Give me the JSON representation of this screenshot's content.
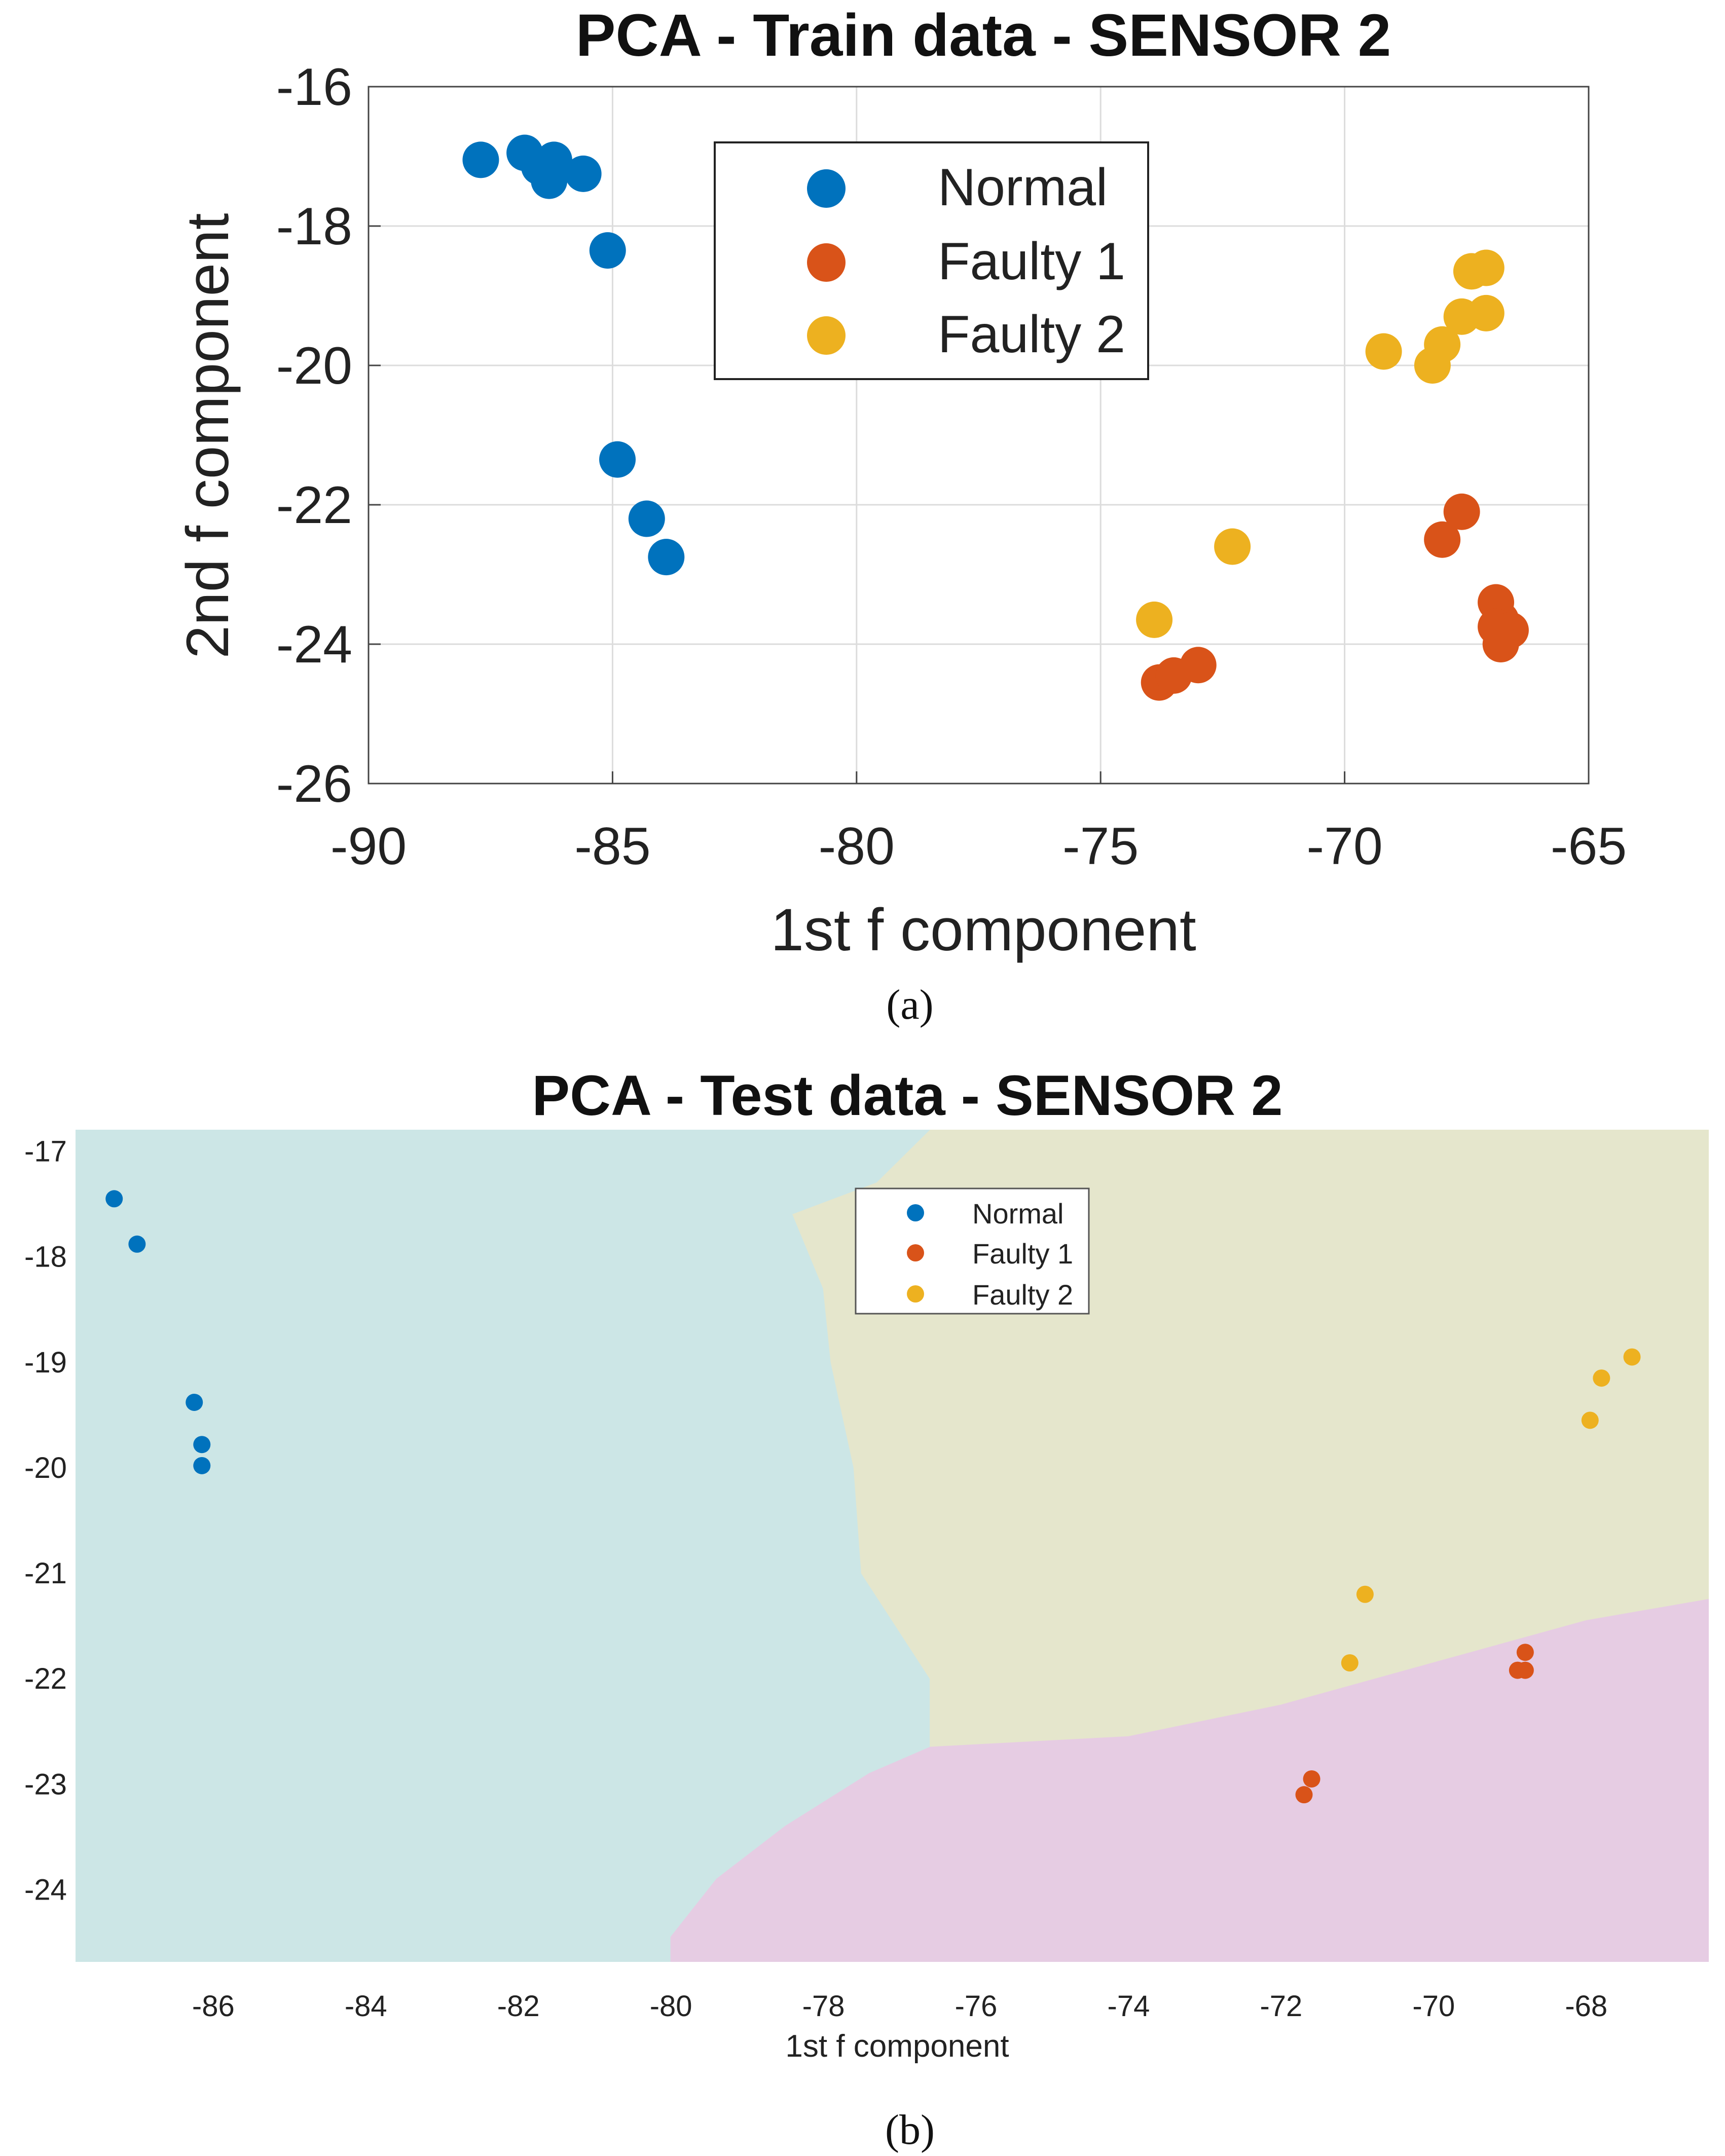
{
  "chart_data": [
    {
      "type": "scatter",
      "title": "PCA - Train data - SENSOR 2",
      "xlabel": "1st f component",
      "ylabel": "2nd f component",
      "xlim": [
        -90,
        -65
      ],
      "ylim": [
        -26,
        -16
      ],
      "xticks": [
        "-90",
        "-85",
        "-80",
        "-75",
        "-70",
        "-65"
      ],
      "xtick_values": [
        -90,
        -85,
        -80,
        -75,
        -70,
        -65
      ],
      "yticks": [
        "-16",
        "-18",
        "-20",
        "-22",
        "-24",
        "-26"
      ],
      "ytick_values": [
        -16,
        -18,
        -20,
        -22,
        -24,
        -26
      ],
      "grid": true,
      "legend_position": "top-center",
      "caption": "(a)",
      "series": [
        {
          "name": "Normal",
          "color": "#0072BD",
          "points": [
            [
              -87.7,
              -17.05
            ],
            [
              -86.8,
              -16.95
            ],
            [
              -86.5,
              -17.15
            ],
            [
              -86.2,
              -17.05
            ],
            [
              -86.3,
              -17.35
            ],
            [
              -85.6,
              -17.25
            ],
            [
              -85.1,
              -18.35
            ],
            [
              -84.9,
              -21.35
            ],
            [
              -84.3,
              -22.2
            ],
            [
              -83.9,
              -22.75
            ]
          ]
        },
        {
          "name": "Faulty 1",
          "color": "#D95319",
          "points": [
            [
              -73.8,
              -24.55
            ],
            [
              -73.5,
              -24.45
            ],
            [
              -73.0,
              -24.3
            ],
            [
              -68.0,
              -22.5
            ],
            [
              -67.6,
              -22.1
            ],
            [
              -66.9,
              -23.4
            ],
            [
              -66.8,
              -23.65
            ],
            [
              -66.9,
              -23.75
            ],
            [
              -66.6,
              -23.8
            ],
            [
              -66.8,
              -24.0
            ]
          ]
        },
        {
          "name": "Faulty 2",
          "color": "#EDB120",
          "points": [
            [
              -73.9,
              -23.65
            ],
            [
              -72.3,
              -22.6
            ],
            [
              -69.2,
              -19.8
            ],
            [
              -68.2,
              -20.0
            ],
            [
              -68.0,
              -19.7
            ],
            [
              -67.6,
              -19.3
            ],
            [
              -67.1,
              -19.25
            ],
            [
              -67.4,
              -18.65
            ],
            [
              -67.1,
              -18.6
            ]
          ]
        }
      ]
    },
    {
      "type": "scatter",
      "title": "PCA - Test data - SENSOR 2",
      "xlabel": "1st f component",
      "ylabel": "",
      "xlim": [
        -87.8,
        -66.4
      ],
      "ylim": [
        -24.68,
        -16.8
      ],
      "xticks": [
        "-86",
        "-84",
        "-82",
        "-80",
        "-78",
        "-76",
        "-74",
        "-72",
        "-70",
        "-68"
      ],
      "xtick_values": [
        -86,
        -84,
        -82,
        -80,
        -78,
        -76,
        -74,
        -72,
        -70,
        -68
      ],
      "yticks": [
        "-17",
        "-18",
        "-19",
        "-20",
        "-21",
        "-22",
        "-23",
        "-24"
      ],
      "ytick_values": [
        -17,
        -18,
        -19,
        -20,
        -21,
        -22,
        -23,
        -24
      ],
      "grid": false,
      "legend_position": "top-center",
      "caption": "(b)",
      "regions": [
        {
          "name": "Normal",
          "color": "#CCE6E6",
          "polygon": [
            [
              -87.8,
              -16.8
            ],
            [
              -76.6,
              -16.8
            ],
            [
              -77.3,
              -17.3
            ],
            [
              -78.4,
              -17.6
            ],
            [
              -78.0,
              -18.3
            ],
            [
              -77.9,
              -19.0
            ],
            [
              -77.6,
              -20.0
            ],
            [
              -77.5,
              -21.0
            ],
            [
              -76.6,
              -22.0
            ],
            [
              -76.6,
              -22.65
            ],
            [
              -77.4,
              -22.9
            ],
            [
              -78.5,
              -23.4
            ],
            [
              -79.4,
              -23.9
            ],
            [
              -80.0,
              -24.45
            ],
            [
              -80.0,
              -24.68
            ],
            [
              -87.8,
              -24.68
            ]
          ]
        },
        {
          "name": "Faulty 2",
          "color": "#E5E6CC",
          "polygon": [
            [
              -76.6,
              -16.8
            ],
            [
              -66.4,
              -16.8
            ],
            [
              -66.4,
              -21.25
            ],
            [
              -68.0,
              -21.45
            ],
            [
              -70.0,
              -21.85
            ],
            [
              -72.0,
              -22.25
            ],
            [
              -74.0,
              -22.55
            ],
            [
              -76.6,
              -22.65
            ],
            [
              -76.6,
              -22.0
            ],
            [
              -77.5,
              -21.0
            ],
            [
              -77.6,
              -20.0
            ],
            [
              -77.9,
              -19.0
            ],
            [
              -78.0,
              -18.3
            ],
            [
              -78.4,
              -17.6
            ],
            [
              -77.3,
              -17.3
            ]
          ]
        },
        {
          "name": "Faulty 1",
          "color": "#E6CCE3",
          "polygon": [
            [
              -76.6,
              -22.65
            ],
            [
              -74.0,
              -22.55
            ],
            [
              -72.0,
              -22.25
            ],
            [
              -70.0,
              -21.85
            ],
            [
              -68.0,
              -21.45
            ],
            [
              -66.4,
              -21.25
            ],
            [
              -66.4,
              -24.68
            ],
            [
              -80.0,
              -24.68
            ],
            [
              -80.0,
              -24.45
            ],
            [
              -79.4,
              -23.9
            ],
            [
              -78.5,
              -23.4
            ],
            [
              -77.4,
              -22.9
            ]
          ]
        }
      ],
      "series": [
        {
          "name": "Normal",
          "color": "#0072BD",
          "points": [
            [
              -87.3,
              -17.45
            ],
            [
              -87.0,
              -17.88
            ],
            [
              -86.25,
              -19.38
            ],
            [
              -86.15,
              -19.78
            ],
            [
              -86.15,
              -19.98
            ]
          ]
        },
        {
          "name": "Faulty 1",
          "color": "#D95319",
          "points": [
            [
              -71.6,
              -22.95
            ],
            [
              -71.7,
              -23.1
            ],
            [
              -68.8,
              -21.75
            ],
            [
              -68.9,
              -21.92
            ],
            [
              -68.8,
              -21.92
            ]
          ]
        },
        {
          "name": "Faulty 2",
          "color": "#EDB120",
          "points": [
            [
              -67.4,
              -18.95
            ],
            [
              -67.8,
              -19.15
            ],
            [
              -67.95,
              -19.55
            ],
            [
              -70.9,
              -21.2
            ],
            [
              -71.1,
              -21.85
            ]
          ]
        }
      ]
    }
  ]
}
